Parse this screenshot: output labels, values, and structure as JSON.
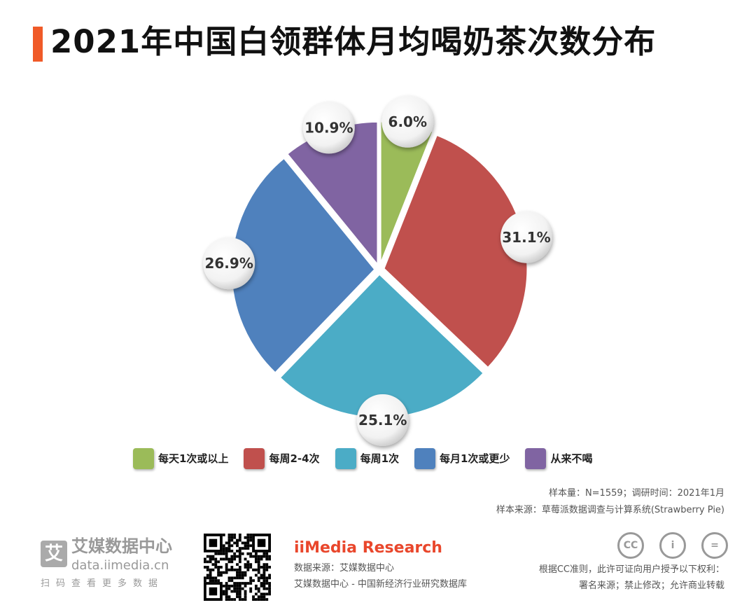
{
  "title": "2021年中国白领群体月均喝奶茶次数分布",
  "chart_data": {
    "type": "pie",
    "title": "2021年中国白领群体月均喝奶茶次数分布",
    "categories": [
      "每天1次或以上",
      "每周2-4次",
      "每周1次",
      "每月1次或更少",
      "从来不喝"
    ],
    "values": [
      6.0,
      31.1,
      25.1,
      26.9,
      10.9
    ],
    "labels": [
      "6.0%",
      "31.1%",
      "25.1%",
      "26.9%",
      "10.9%"
    ],
    "colors": [
      "#9bbb59",
      "#c0504d",
      "#4bacc6",
      "#4f81bd",
      "#8064a2"
    ],
    "legend_placement": "bottom"
  },
  "notes": {
    "sample": "样本量：N=1559；调研时间：2021年1月",
    "source": "样本来源：草莓派数据调查与计算系统(Strawberry Pie)"
  },
  "footer": {
    "logo_name": "艾媒数据中心",
    "logo_mark": "艾",
    "logo_url": "data.iimedia.cn",
    "scan": "扫码查看更多数据",
    "brand": "iiMedia Research",
    "data_source": "数据来源：艾媒数据中心",
    "database": "艾媒数据中心 - 中国新经济行业研究数据库",
    "cc_icons": [
      "CC",
      "i",
      "="
    ],
    "license_1": "根据CC准则，此许可证向用户授予以下权利：",
    "license_2": "署名来源；禁止修改；允许商业转载"
  }
}
